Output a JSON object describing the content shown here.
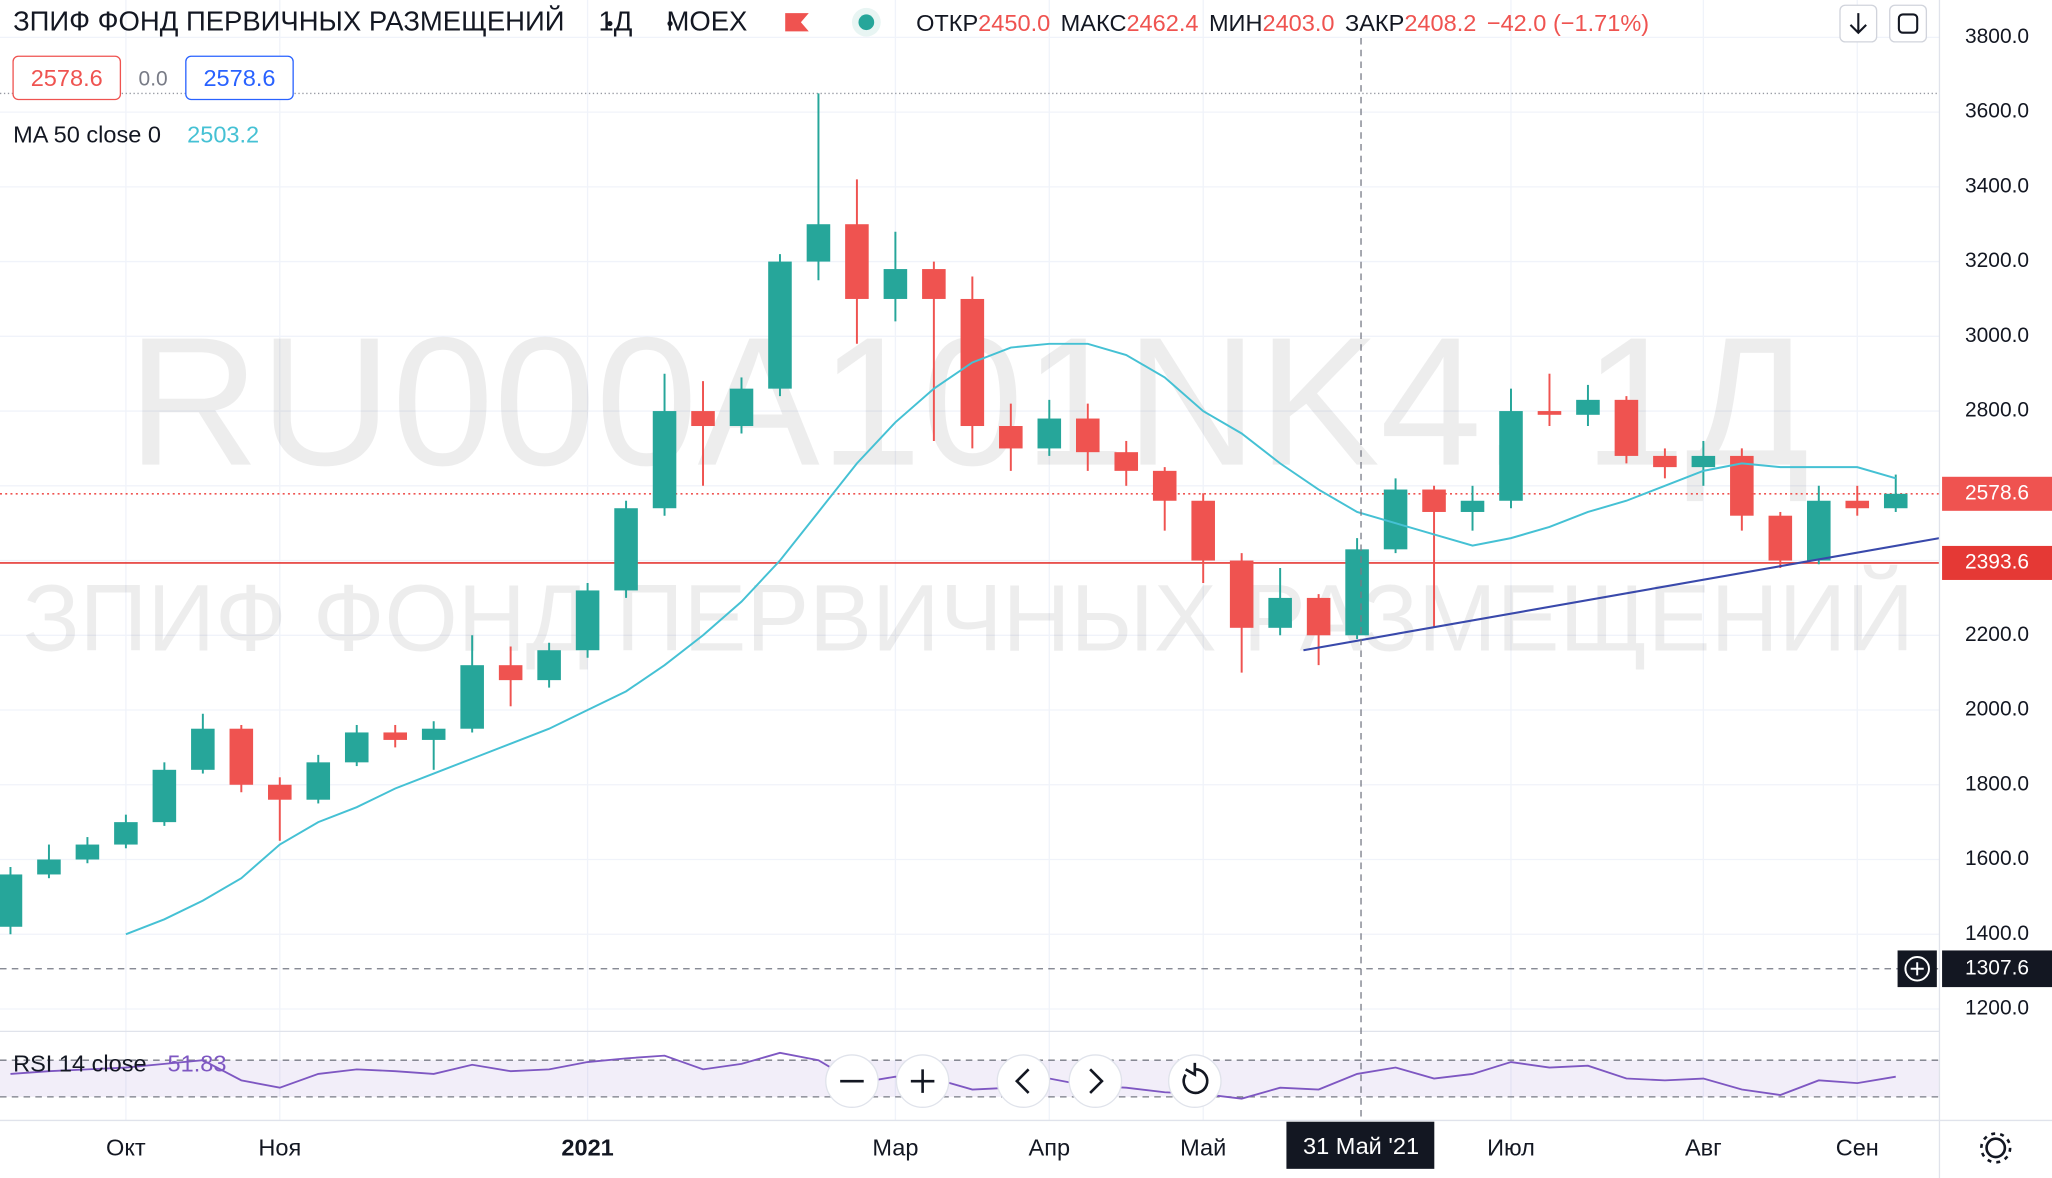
{
  "chart_data": {
    "type": "candlestick",
    "title": "ЗПИФ ФОНД ПЕРВИЧНЫХ РАЗМЕЩЕНИЙ",
    "interval": "1Д",
    "exchange": "MOEX",
    "ohlc_legend": [
      {
        "label": "ОТКР",
        "value": "2450.0"
      },
      {
        "label": "МАКС",
        "value": "2462.4"
      },
      {
        "label": "МИН",
        "value": "2403.0"
      },
      {
        "label": "ЗАКР",
        "value": "2408.2"
      }
    ],
    "change": "−42.0 (−1.71%)",
    "order_boxes": [
      "2578.6",
      "0.0",
      "2578.6"
    ],
    "watermark": [
      "RU000A101NK4, 1Д",
      "ЗПИФ ФОНД ПЕРВИЧНЫХ РАЗМЕЩЕНИЙ"
    ],
    "categories": [
      null,
      null,
      null,
      "Окт",
      null,
      null,
      null,
      "Ноя",
      null,
      null,
      null,
      null,
      null,
      null,
      null,
      "2021",
      null,
      null,
      null,
      null,
      null,
      null,
      null,
      "Мар",
      null,
      null,
      null,
      "Апр",
      null,
      null,
      null,
      "Май",
      null,
      null,
      null,
      null,
      null,
      null,
      null,
      "Июл",
      null,
      null,
      null,
      null,
      "Авг",
      null,
      null,
      null,
      "Сен",
      null
    ],
    "series": [
      {
        "name": "ЗПИФ ФОНД ПЕРВИЧНЫХ РАЗМЕЩЕНИЙ",
        "open": [
          1420,
          1560,
          1600,
          1640,
          1700,
          1840,
          1950,
          1800,
          1760,
          1860,
          1940,
          1920,
          1950,
          2120,
          2080,
          2160,
          2320,
          2540,
          2800,
          2760,
          2860,
          3200,
          3300,
          3100,
          3180,
          3100,
          2760,
          2700,
          2780,
          2690,
          2640,
          2560,
          2400,
          2220,
          2300,
          2200,
          2430,
          2590,
          2530,
          2560,
          2800,
          2790,
          2830,
          2680,
          2650,
          2680,
          2520,
          2400,
          2560,
          2540
        ],
        "high": [
          1580,
          1640,
          1660,
          1720,
          1860,
          1990,
          1960,
          1820,
          1880,
          1960,
          1960,
          1970,
          2200,
          2170,
          2180,
          2340,
          2560,
          2900,
          2880,
          2890,
          3220,
          3650,
          3420,
          3280,
          3200,
          3160,
          2820,
          2830,
          2820,
          2720,
          2650,
          2580,
          2420,
          2380,
          2310,
          2460,
          2620,
          2600,
          2600,
          2860,
          2900,
          2870,
          2840,
          2700,
          2720,
          2700,
          2530,
          2600,
          2600,
          2630
        ],
        "low": [
          1400,
          1550,
          1590,
          1630,
          1690,
          1830,
          1780,
          1650,
          1750,
          1850,
          1900,
          1840,
          1940,
          2010,
          2060,
          2140,
          2300,
          2520,
          2600,
          2740,
          2840,
          3150,
          2980,
          3040,
          2720,
          2700,
          2640,
          2680,
          2640,
          2600,
          2480,
          2340,
          2100,
          2200,
          2120,
          2190,
          2420,
          2220,
          2480,
          2540,
          2760,
          2760,
          2660,
          2620,
          2600,
          2480,
          2380,
          2390,
          2520,
          2530
        ],
        "close": [
          1560,
          1600,
          1640,
          1700,
          1840,
          1950,
          1800,
          1760,
          1860,
          1940,
          1920,
          1950,
          2120,
          2080,
          2160,
          2320,
          2540,
          2800,
          2760,
          2860,
          3200,
          3300,
          3100,
          3180,
          3100,
          2760,
          2700,
          2780,
          2690,
          2640,
          2560,
          2400,
          2220,
          2300,
          2200,
          2430,
          2590,
          2530,
          2560,
          2800,
          2790,
          2830,
          2680,
          2650,
          2680,
          2520,
          2400,
          2560,
          2540,
          2578.6
        ]
      }
    ],
    "up_color": "#26a69a",
    "down_color": "#ef5350",
    "ma": {
      "name": "MA 50 close 0",
      "value_label": "2503.2",
      "color": "#45c1d4",
      "values": [
        null,
        null,
        null,
        1400,
        1440,
        1490,
        1550,
        1640,
        1700,
        1740,
        1790,
        1830,
        1870,
        1910,
        1950,
        2000,
        2050,
        2120,
        2200,
        2290,
        2400,
        2530,
        2660,
        2770,
        2860,
        2930,
        2970,
        2980,
        2980,
        2950,
        2890,
        2800,
        2740,
        2660,
        2590,
        2530,
        2500,
        2470,
        2440,
        2460,
        2490,
        2530,
        2560,
        2600,
        2640,
        2660,
        2650,
        2650,
        2650,
        2620
      ]
    },
    "rsi": {
      "name": "RSI 14 close",
      "value_label": "51.83",
      "color": "#7e57c2",
      "levels": [
        30,
        70
      ],
      "values": [
        55,
        58,
        60,
        62,
        66,
        70,
        48,
        40,
        55,
        60,
        58,
        55,
        65,
        58,
        60,
        68,
        72,
        75,
        60,
        66,
        78,
        70,
        45,
        52,
        50,
        38,
        40,
        50,
        42,
        40,
        35,
        33,
        28,
        40,
        38,
        55,
        62,
        50,
        55,
        68,
        62,
        64,
        50,
        48,
        50,
        38,
        32,
        48,
        45,
        52
      ]
    },
    "ylim": [
      1140,
      3900
    ],
    "yticks": [
      {
        "value": 1200,
        "label": "1200.0"
      },
      {
        "value": 1400,
        "label": "1400.0"
      },
      {
        "value": 1600,
        "label": "1600.0"
      },
      {
        "value": 1800,
        "label": "1800.0"
      },
      {
        "value": 2000,
        "label": "2000.0"
      },
      {
        "value": 2200,
        "label": "2200.0"
      },
      {
        "value": 2400,
        "label": "2400.0"
      },
      {
        "value": 2600,
        "label": "2600.0"
      },
      {
        "value": 2800,
        "label": "2800.0"
      },
      {
        "value": 3000,
        "label": "3000.0"
      },
      {
        "value": 3200,
        "label": "3200.0"
      },
      {
        "value": 3400,
        "label": "3400.0"
      },
      {
        "value": 3600,
        "label": "3600.0"
      },
      {
        "value": 3800,
        "label": "3800.0"
      }
    ],
    "grid": true,
    "price_lines": [
      {
        "value": 2578.6,
        "label": "2578.6",
        "color": "#ef5350",
        "style": "dotted"
      },
      {
        "value": 2393.6,
        "label": "2393.6",
        "color": "#e53935",
        "style": "solid"
      }
    ],
    "crosshair": {
      "value": 1307.6,
      "label": "1307.6",
      "date": "31 Май '21"
    },
    "trendline": {
      "start": 2160,
      "end": 2460,
      "color": "#3949ab"
    }
  }
}
